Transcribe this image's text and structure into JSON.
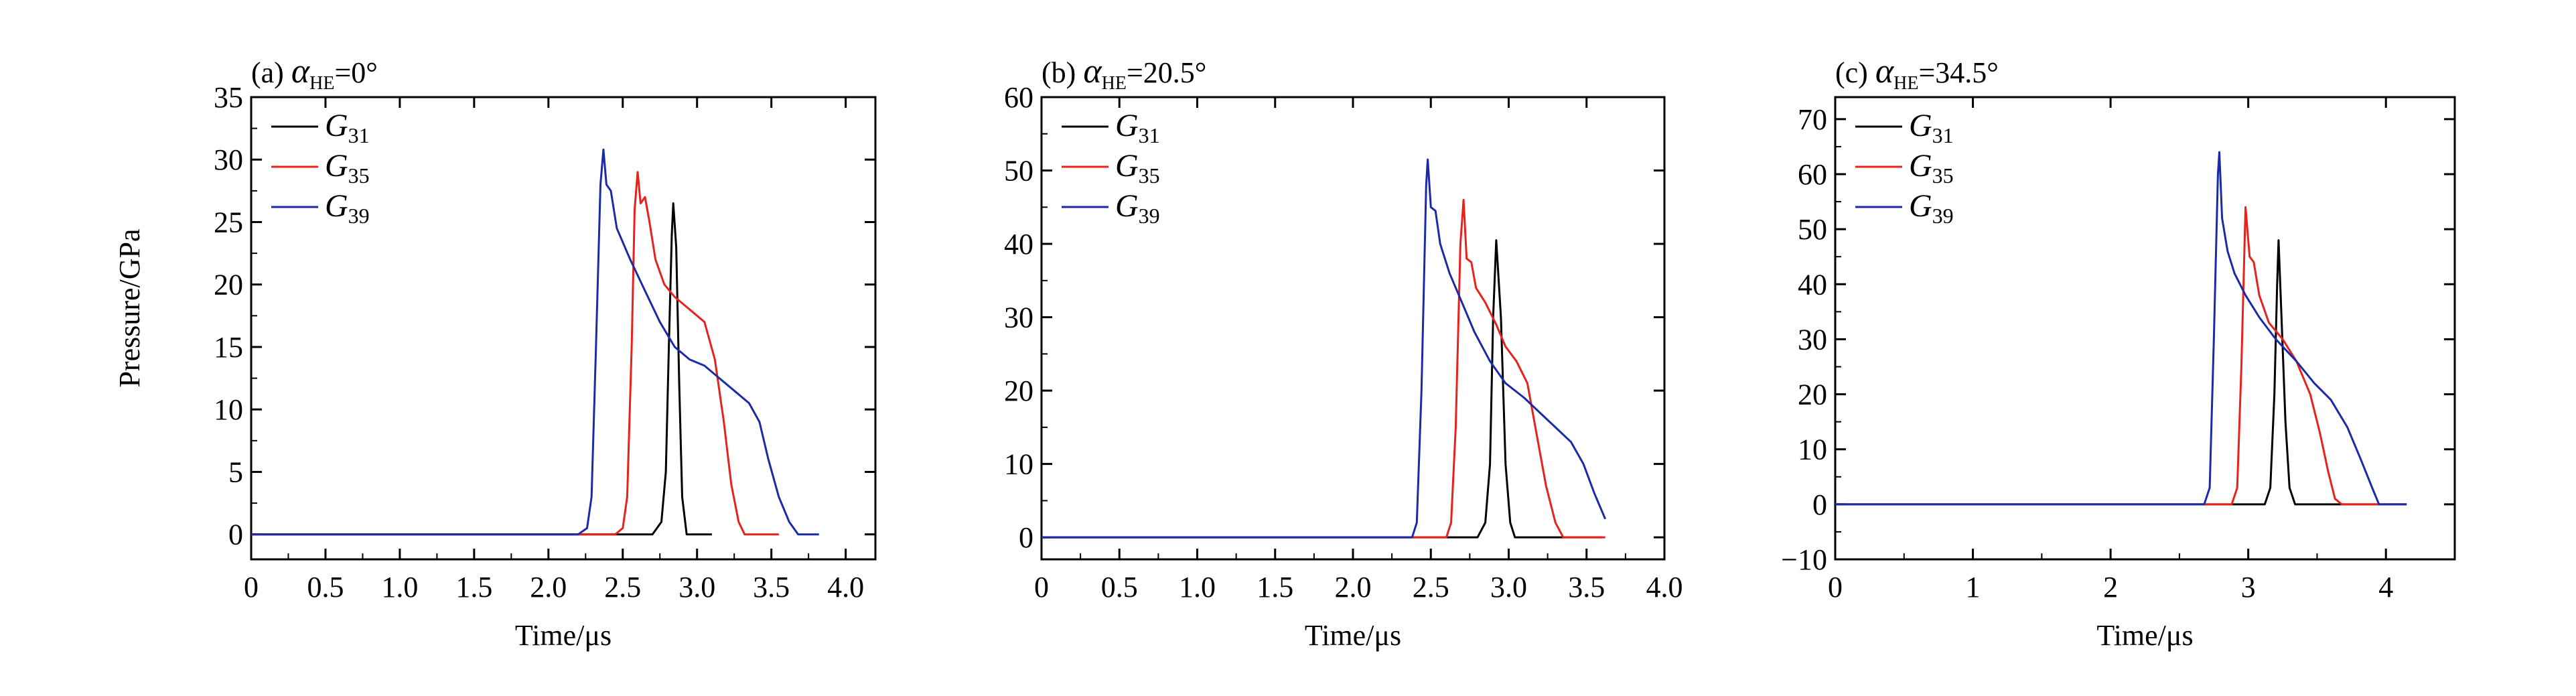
{
  "figure": {
    "ylabel": "Pressure/GPa",
    "xlabel": "Time/μs"
  },
  "chart_data": [
    {
      "type": "line",
      "panel_label": "(a) ",
      "title_symbol": "α",
      "title_subscript": "HE",
      "title_value": "=0°",
      "xlabel": "Time/μs",
      "ylabel": "Pressure/GPa",
      "xlim": [
        0,
        4.2
      ],
      "ylim": [
        -2,
        35
      ],
      "xticks": [
        0,
        0.5,
        1.0,
        1.5,
        2.0,
        2.5,
        3.0,
        3.5,
        4.0
      ],
      "xtick_labels": [
        "0",
        "0.5",
        "1.0",
        "1.5",
        "2.0",
        "2.5",
        "3.0",
        "3.5",
        "4.0"
      ],
      "yticks": [
        0,
        5,
        10,
        15,
        20,
        25,
        30,
        35
      ],
      "ytick_labels": [
        "0",
        "5",
        "10",
        "15",
        "20",
        "25",
        "30",
        "35"
      ],
      "legend_position": "top-left",
      "series": [
        {
          "name": "G31",
          "legend_main": "G",
          "legend_sub": "31",
          "color": "#000000",
          "points": [
            [
              0,
              0
            ],
            [
              2.7,
              0
            ],
            [
              2.76,
              1
            ],
            [
              2.79,
              5
            ],
            [
              2.81,
              15
            ],
            [
              2.83,
              24
            ],
            [
              2.84,
              26.5
            ],
            [
              2.86,
              23
            ],
            [
              2.88,
              12
            ],
            [
              2.9,
              3
            ],
            [
              2.93,
              0
            ],
            [
              3.1,
              0
            ]
          ]
        },
        {
          "name": "G35",
          "legend_main": "G",
          "legend_sub": "35",
          "color": "#e8211b",
          "points": [
            [
              0,
              0
            ],
            [
              2.45,
              0
            ],
            [
              2.5,
              0.5
            ],
            [
              2.53,
              3
            ],
            [
              2.56,
              15
            ],
            [
              2.58,
              26
            ],
            [
              2.6,
              29
            ],
            [
              2.62,
              26.5
            ],
            [
              2.65,
              27
            ],
            [
              2.68,
              25
            ],
            [
              2.72,
              22
            ],
            [
              2.78,
              20
            ],
            [
              2.85,
              19
            ],
            [
              2.95,
              18
            ],
            [
              3.05,
              17
            ],
            [
              3.12,
              14
            ],
            [
              3.18,
              9
            ],
            [
              3.23,
              4
            ],
            [
              3.28,
              1
            ],
            [
              3.32,
              0
            ],
            [
              3.55,
              0
            ]
          ]
        },
        {
          "name": "G39",
          "legend_main": "G",
          "legend_sub": "39",
          "color": "#1a2aa8",
          "points": [
            [
              0,
              0
            ],
            [
              2.2,
              0
            ],
            [
              2.26,
              0.5
            ],
            [
              2.29,
              3
            ],
            [
              2.32,
              15
            ],
            [
              2.35,
              28
            ],
            [
              2.37,
              30.8
            ],
            [
              2.39,
              28
            ],
            [
              2.42,
              27.5
            ],
            [
              2.46,
              24.5
            ],
            [
              2.55,
              22
            ],
            [
              2.65,
              19.5
            ],
            [
              2.75,
              17
            ],
            [
              2.85,
              15
            ],
            [
              2.95,
              14
            ],
            [
              3.05,
              13.5
            ],
            [
              3.15,
              12.5
            ],
            [
              3.25,
              11.5
            ],
            [
              3.35,
              10.5
            ],
            [
              3.42,
              9
            ],
            [
              3.48,
              6
            ],
            [
              3.55,
              3
            ],
            [
              3.62,
              1
            ],
            [
              3.68,
              0
            ],
            [
              3.82,
              0
            ]
          ]
        }
      ]
    },
    {
      "type": "line",
      "panel_label": "(b) ",
      "title_symbol": "α",
      "title_subscript": "HE",
      "title_value": "=20.5°",
      "xlabel": "Time/μs",
      "ylabel": "",
      "xlim": [
        0,
        4.0
      ],
      "ylim": [
        -3,
        60
      ],
      "xticks": [
        0,
        0.5,
        1.0,
        1.5,
        2.0,
        2.5,
        3.0,
        3.5,
        4.0
      ],
      "xtick_labels": [
        "0",
        "0.5",
        "1.0",
        "1.5",
        "2.0",
        "2.5",
        "3.0",
        "3.5",
        "4.0"
      ],
      "yticks": [
        0,
        10,
        20,
        30,
        40,
        50,
        60
      ],
      "ytick_labels": [
        "0",
        "10",
        "20",
        "30",
        "40",
        "50",
        "60"
      ],
      "legend_position": "top-left",
      "series": [
        {
          "name": "G31",
          "legend_main": "G",
          "legend_sub": "31",
          "color": "#000000",
          "points": [
            [
              0,
              0
            ],
            [
              2.8,
              0
            ],
            [
              2.85,
              2
            ],
            [
              2.88,
              10
            ],
            [
              2.9,
              30
            ],
            [
              2.92,
              40.5
            ],
            [
              2.95,
              30
            ],
            [
              2.98,
              10
            ],
            [
              3.01,
              2
            ],
            [
              3.04,
              0
            ],
            [
              3.6,
              0
            ]
          ]
        },
        {
          "name": "G35",
          "legend_main": "G",
          "legend_sub": "35",
          "color": "#e8211b",
          "points": [
            [
              0,
              0
            ],
            [
              2.6,
              0
            ],
            [
              2.63,
              2
            ],
            [
              2.66,
              15
            ],
            [
              2.69,
              40
            ],
            [
              2.71,
              46
            ],
            [
              2.73,
              38
            ],
            [
              2.76,
              37.5
            ],
            [
              2.79,
              34
            ],
            [
              2.85,
              32
            ],
            [
              2.92,
              29
            ],
            [
              2.98,
              26
            ],
            [
              3.05,
              24
            ],
            [
              3.12,
              21
            ],
            [
              3.18,
              14
            ],
            [
              3.24,
              7
            ],
            [
              3.3,
              2
            ],
            [
              3.35,
              0
            ],
            [
              3.62,
              0
            ]
          ]
        },
        {
          "name": "G39",
          "legend_main": "G",
          "legend_sub": "39",
          "color": "#1a2aa8",
          "points": [
            [
              0,
              0
            ],
            [
              2.38,
              0
            ],
            [
              2.41,
              2
            ],
            [
              2.44,
              20
            ],
            [
              2.47,
              48
            ],
            [
              2.48,
              51.5
            ],
            [
              2.5,
              45
            ],
            [
              2.53,
              44.5
            ],
            [
              2.56,
              40
            ],
            [
              2.62,
              36
            ],
            [
              2.7,
              32
            ],
            [
              2.78,
              28
            ],
            [
              2.88,
              24
            ],
            [
              2.98,
              21
            ],
            [
              3.1,
              19
            ],
            [
              3.2,
              17
            ],
            [
              3.3,
              15
            ],
            [
              3.4,
              13
            ],
            [
              3.48,
              10
            ],
            [
              3.55,
              6
            ],
            [
              3.62,
              2.5
            ]
          ]
        }
      ]
    },
    {
      "type": "line",
      "panel_label": "(c) ",
      "title_symbol": "α",
      "title_subscript": "HE",
      "title_value": "=34.5°",
      "xlabel": "Time/μs",
      "ylabel": "",
      "xlim": [
        0,
        4.5
      ],
      "ylim": [
        -10,
        74
      ],
      "xticks": [
        0,
        1,
        2,
        3,
        4
      ],
      "xtick_labels": [
        "0",
        "1",
        "2",
        "3",
        "4"
      ],
      "yticks": [
        -10,
        0,
        10,
        20,
        30,
        40,
        50,
        60,
        70
      ],
      "ytick_labels": [
        "−10",
        "0",
        "10",
        "20",
        "30",
        "40",
        "50",
        "60",
        "70"
      ],
      "legend_position": "top-left",
      "series": [
        {
          "name": "G31",
          "legend_main": "G",
          "legend_sub": "31",
          "color": "#000000",
          "points": [
            [
              0,
              0
            ],
            [
              3.12,
              0
            ],
            [
              3.16,
              3
            ],
            [
              3.19,
              20
            ],
            [
              3.21,
              40
            ],
            [
              3.22,
              48
            ],
            [
              3.24,
              35
            ],
            [
              3.27,
              15
            ],
            [
              3.3,
              3
            ],
            [
              3.34,
              0
            ],
            [
              4.15,
              0
            ]
          ]
        },
        {
          "name": "G35",
          "legend_main": "G",
          "legend_sub": "35",
          "color": "#e8211b",
          "points": [
            [
              0,
              0
            ],
            [
              2.88,
              0
            ],
            [
              2.92,
              3
            ],
            [
              2.95,
              25
            ],
            [
              2.98,
              54
            ],
            [
              3.01,
              45
            ],
            [
              3.04,
              44
            ],
            [
              3.08,
              38
            ],
            [
              3.15,
              33
            ],
            [
              3.25,
              30
            ],
            [
              3.35,
              26
            ],
            [
              3.45,
              20
            ],
            [
              3.52,
              13
            ],
            [
              3.58,
              6
            ],
            [
              3.63,
              1
            ],
            [
              3.68,
              0
            ],
            [
              4.15,
              0
            ]
          ]
        },
        {
          "name": "G39",
          "legend_main": "G",
          "legend_sub": "39",
          "color": "#1a2aa8",
          "points": [
            [
              0,
              0
            ],
            [
              2.68,
              0
            ],
            [
              2.72,
              3
            ],
            [
              2.75,
              30
            ],
            [
              2.78,
              60
            ],
            [
              2.79,
              64
            ],
            [
              2.81,
              52
            ],
            [
              2.85,
              46
            ],
            [
              2.9,
              42
            ],
            [
              2.98,
              38
            ],
            [
              3.08,
              34
            ],
            [
              3.2,
              30
            ],
            [
              3.35,
              26
            ],
            [
              3.48,
              22
            ],
            [
              3.6,
              19
            ],
            [
              3.72,
              14
            ],
            [
              3.82,
              8
            ],
            [
              3.9,
              3
            ],
            [
              3.95,
              0
            ],
            [
              4.15,
              0
            ]
          ]
        }
      ]
    }
  ]
}
